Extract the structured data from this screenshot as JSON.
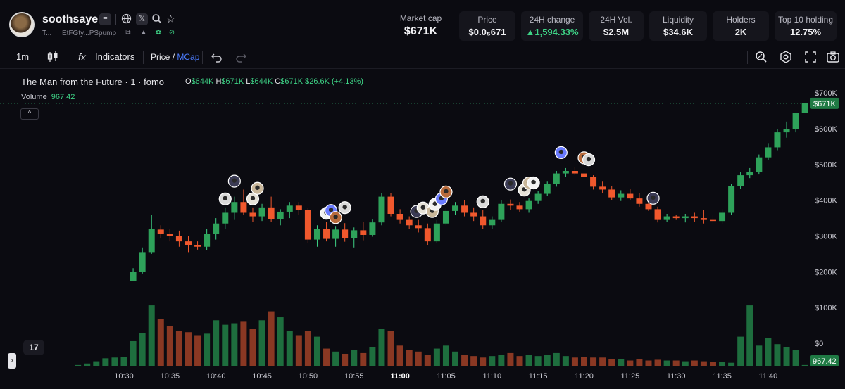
{
  "token": {
    "name": "soothsayer",
    "sub_label": "T...",
    "address": "EtFGty...PSpump"
  },
  "stats": {
    "market_cap": {
      "label": "Market cap",
      "value": "$671K"
    },
    "price": {
      "label": "Price",
      "value": "$0.0₅671"
    },
    "change_24h": {
      "label": "24H change",
      "value": "▲1,594.33%"
    },
    "volume_24h": {
      "label": "24H Vol.",
      "value": "$2.5M"
    },
    "liquidity": {
      "label": "Liquidity",
      "value": "$34.6K"
    },
    "holders": {
      "label": "Holders",
      "value": "2K"
    },
    "top10": {
      "label": "Top 10 holding",
      "value": "12.75%"
    }
  },
  "toolbar": {
    "interval": "1m",
    "indicators_label": "Indicators",
    "price_label": "Price",
    "slash": "/",
    "mcap_label": "MCap",
    "fx_label": "fx"
  },
  "icons": {
    "header": [
      "menu-icon",
      "globe-icon",
      "x-icon",
      "search-icon",
      "star-icon"
    ],
    "sub": [
      "copy-icon",
      "user-icon",
      "pill-icon",
      "link-icon"
    ],
    "toolbar": [
      "candles-icon",
      "undo-icon",
      "redo-icon",
      "magnify-icon",
      "settings-icon",
      "fullscreen-icon",
      "camera-icon"
    ]
  },
  "legend": {
    "title": "The Man from the Future · 1 · fomo",
    "o_label": "O",
    "o_value": "$644K",
    "h_label": "H",
    "h_value": "$671K",
    "l_label": "L",
    "l_value": "$644K",
    "c_label": "C",
    "c_value": "$671K",
    "change": "$26.6K (+4.13%)",
    "volume_label": "Volume",
    "volume_value": "967.42",
    "collapse_glyph": "^",
    "tv_logo": "17",
    "side_tab": "›"
  },
  "colors": {
    "up": "#2ea25a",
    "up_bright": "#3ed386",
    "down": "#f0582d",
    "up_volume": "#1e6e3e",
    "down_volume": "#8a3823",
    "background": "#0b0b11",
    "accent_blue": "#4c7dff"
  },
  "chart_data": {
    "type": "candlestick",
    "x_unit": "time (1m candles)",
    "y_axis": {
      "ticks": [
        "$700K",
        "$600K",
        "$500K",
        "$400K",
        "$300K",
        "$200K",
        "$100K",
        "$0"
      ],
      "tick_values": [
        700,
        600,
        500,
        400,
        300,
        200,
        100,
        0
      ],
      "unit": "$K",
      "current_label": "$671K",
      "current_value": 671
    },
    "volume_label_value": "967.42",
    "x_axis": {
      "ticks": [
        "10:30",
        "10:35",
        "10:40",
        "10:45",
        "10:50",
        "10:55",
        "11:00",
        "11:05",
        "11:10",
        "11:15",
        "11:20",
        "11:25",
        "11:30",
        "11:35",
        "11:40"
      ],
      "tick_times": [
        30,
        35,
        40,
        45,
        50,
        55,
        60,
        65,
        70,
        75,
        80,
        85,
        90,
        95,
        100
      ],
      "bold_tick": "11:00"
    },
    "candles_start_minute": 25,
    "candles_ohlc_k": [
      [
        0,
        0,
        0,
        0
      ],
      [
        0,
        0,
        0,
        0
      ],
      [
        0,
        0,
        0,
        0
      ],
      [
        0,
        0,
        0,
        0
      ],
      [
        0,
        0,
        0,
        0
      ],
      [
        0,
        0,
        0,
        0
      ],
      [
        175,
        210,
        175,
        200
      ],
      [
        200,
        268,
        195,
        255
      ],
      [
        255,
        360,
        250,
        320
      ],
      [
        318,
        330,
        295,
        305
      ],
      [
        305,
        320,
        285,
        300
      ],
      [
        300,
        315,
        270,
        285
      ],
      [
        285,
        300,
        255,
        275
      ],
      [
        275,
        285,
        262,
        270
      ],
      [
        270,
        320,
        260,
        305
      ],
      [
        305,
        350,
        290,
        335
      ],
      [
        335,
        380,
        320,
        365
      ],
      [
        365,
        410,
        345,
        395
      ],
      [
        395,
        430,
        360,
        365
      ],
      [
        365,
        380,
        340,
        355
      ],
      [
        355,
        390,
        342,
        380
      ],
      [
        380,
        410,
        340,
        348
      ],
      [
        348,
        375,
        330,
        368
      ],
      [
        368,
        395,
        350,
        385
      ],
      [
        385,
        395,
        360,
        372
      ],
      [
        372,
        378,
        280,
        290
      ],
      [
        290,
        330,
        270,
        320
      ],
      [
        320,
        340,
        285,
        292
      ],
      [
        292,
        328,
        270,
        318
      ],
      [
        318,
        336,
        284,
        294
      ],
      [
        294,
        324,
        268,
        316
      ],
      [
        316,
        340,
        288,
        303
      ],
      [
        303,
        346,
        298,
        338
      ],
      [
        338,
        420,
        330,
        410
      ],
      [
        410,
        420,
        355,
        362
      ],
      [
        362,
        375,
        335,
        345
      ],
      [
        345,
        355,
        320,
        330
      ],
      [
        330,
        345,
        310,
        322
      ],
      [
        322,
        335,
        275,
        285
      ],
      [
        285,
        345,
        280,
        335
      ],
      [
        335,
        380,
        330,
        370
      ],
      [
        370,
        395,
        360,
        385
      ],
      [
        385,
        400,
        355,
        365
      ],
      [
        365,
        380,
        342,
        355
      ],
      [
        355,
        372,
        320,
        330
      ],
      [
        330,
        355,
        320,
        345
      ],
      [
        345,
        400,
        340,
        390
      ],
      [
        390,
        402,
        372,
        385
      ],
      [
        385,
        395,
        368,
        375
      ],
      [
        375,
        405,
        365,
        398
      ],
      [
        398,
        425,
        390,
        418
      ],
      [
        418,
        452,
        412,
        445
      ],
      [
        445,
        482,
        438,
        475
      ],
      [
        475,
        490,
        465,
        482
      ],
      [
        482,
        493,
        470,
        475
      ],
      [
        475,
        495,
        458,
        465
      ],
      [
        465,
        470,
        430,
        438
      ],
      [
        438,
        452,
        420,
        430
      ],
      [
        430,
        440,
        400,
        408
      ],
      [
        408,
        428,
        398,
        418
      ],
      [
        418,
        432,
        400,
        405
      ],
      [
        405,
        420,
        382,
        390
      ],
      [
        390,
        405,
        370,
        375
      ],
      [
        375,
        382,
        338,
        345
      ],
      [
        345,
        362,
        340,
        355
      ],
      [
        355,
        360,
        345,
        350
      ],
      [
        350,
        362,
        338,
        355
      ],
      [
        355,
        365,
        340,
        350
      ],
      [
        350,
        372,
        335,
        345
      ],
      [
        345,
        360,
        335,
        342
      ],
      [
        342,
        375,
        335,
        365
      ],
      [
        365,
        445,
        360,
        440
      ],
      [
        440,
        478,
        432,
        470
      ],
      [
        470,
        490,
        462,
        480
      ],
      [
        480,
        528,
        472,
        520
      ],
      [
        520,
        560,
        512,
        548
      ],
      [
        548,
        600,
        540,
        590
      ],
      [
        590,
        620,
        575,
        600
      ],
      [
        600,
        645,
        590,
        644
      ],
      [
        644,
        671,
        644,
        671
      ]
    ],
    "volume_relative": [
      0.02,
      0.04,
      0.07,
      0.11,
      0.12,
      0.13,
      0.34,
      0.45,
      0.82,
      0.64,
      0.54,
      0.48,
      0.46,
      0.42,
      0.44,
      0.62,
      0.56,
      0.58,
      0.6,
      0.5,
      0.62,
      0.74,
      0.66,
      0.48,
      0.42,
      0.48,
      0.4,
      0.24,
      0.2,
      0.17,
      0.22,
      0.18,
      0.26,
      0.5,
      0.48,
      0.28,
      0.22,
      0.2,
      0.16,
      0.24,
      0.28,
      0.2,
      0.16,
      0.14,
      0.12,
      0.14,
      0.16,
      0.18,
      0.14,
      0.16,
      0.14,
      0.16,
      0.18,
      0.14,
      0.12,
      0.13,
      0.12,
      0.12,
      0.1,
      0.1,
      0.08,
      0.1,
      0.08,
      0.09,
      0.08,
      0.08,
      0.07,
      0.08,
      0.07,
      0.06,
      0.06,
      0.05,
      0.4,
      0.82,
      0.28,
      0.38,
      0.3,
      0.26,
      0.22,
      0.02
    ],
    "markers_minutes": [
      41,
      42,
      44,
      44.5,
      52,
      52.5,
      53,
      54,
      61.8,
      62.5,
      63.5,
      63.8,
      64.5,
      65,
      69,
      72,
      73.5,
      74,
      74.5,
      77.5,
      80,
      80.5,
      87.5
    ]
  }
}
